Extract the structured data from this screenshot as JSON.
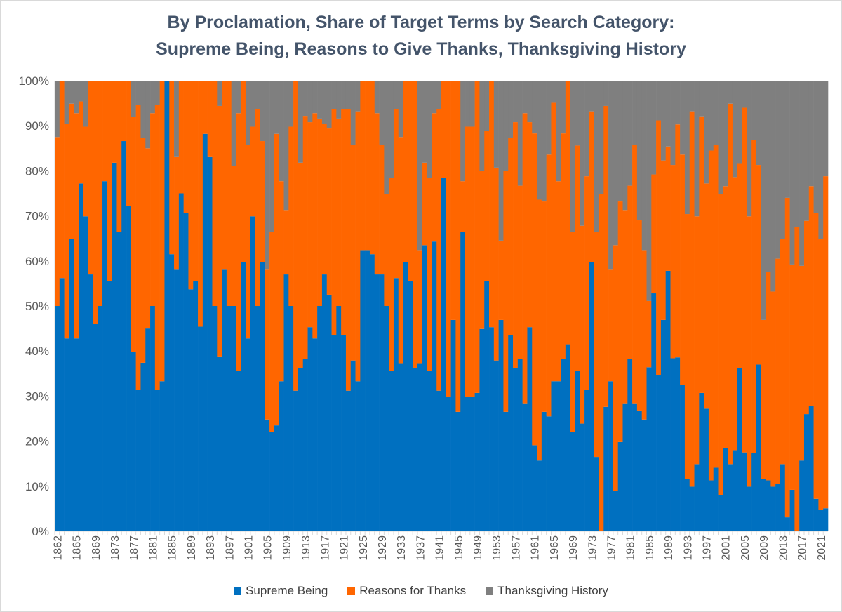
{
  "chart_data": {
    "type": "bar",
    "stacked": "100%",
    "title": [
      "By Proclamation, Share of Target Terms by Search Category:",
      "Supreme Being, Reasons to Give Thanks, Thanksgiving History"
    ],
    "xlabel": "",
    "ylabel": "",
    "ylim": [
      0,
      100
    ],
    "y_tick_labels": [
      "0%",
      "10%",
      "20%",
      "30%",
      "40%",
      "50%",
      "60%",
      "70%",
      "80%",
      "90%",
      "100%"
    ],
    "x_label_interval": 4,
    "grid": false,
    "legend_position": "bottom",
    "categories": [
      "1862",
      "1863",
      "1863",
      "1864",
      "1865",
      "1866",
      "1867",
      "1868",
      "1869",
      "1870",
      "1871",
      "1872",
      "1873",
      "1874",
      "1875",
      "1876",
      "1877",
      "1878",
      "1879",
      "1880",
      "1881",
      "1882",
      "1883",
      "1884",
      "1885",
      "1886",
      "1887",
      "1888",
      "1889",
      "1890",
      "1891",
      "1892",
      "1893",
      "1894",
      "1895",
      "1896",
      "1897",
      "1898",
      "1899",
      "1900",
      "1901",
      "1902",
      "1903",
      "1904",
      "1905",
      "1906",
      "1907",
      "1908",
      "1909",
      "1910",
      "1911",
      "1912",
      "1913",
      "1914",
      "1915",
      "1916",
      "1917",
      "1918",
      "1919",
      "1920",
      "1921",
      "1922",
      "1923",
      "1924",
      "1925",
      "1926",
      "1927",
      "1928",
      "1929",
      "1930",
      "1931",
      "1932",
      "1933",
      "1934",
      "1935",
      "1936",
      "1937",
      "1938",
      "1939",
      "1940",
      "1941",
      "1942",
      "1943",
      "1944",
      "1945",
      "1946",
      "1947",
      "1948",
      "1949",
      "1950",
      "1951",
      "1952",
      "1953",
      "1954",
      "1955",
      "1956",
      "1957",
      "1958",
      "1959",
      "1960",
      "1961",
      "1962",
      "1963",
      "1964",
      "1965",
      "1966",
      "1967",
      "1968",
      "1969",
      "1970",
      "1971",
      "1972",
      "1973",
      "1974",
      "1975",
      "1976",
      "1977",
      "1978",
      "1979",
      "1980",
      "1981",
      "1982",
      "1983",
      "1984",
      "1985",
      "1986",
      "1987",
      "1988",
      "1989",
      "1990",
      "1991",
      "1992",
      "1993",
      "1994",
      "1995",
      "1996",
      "1997",
      "1998",
      "1999",
      "2000",
      "2001",
      "2002",
      "2003",
      "2004",
      "2005",
      "2006",
      "2007",
      "2008",
      "2009",
      "2010",
      "2011",
      "2012",
      "2013",
      "2014",
      "2015",
      "2016",
      "2017",
      "2018",
      "2019",
      "2020",
      "2021",
      "2022"
    ],
    "series": [
      {
        "name": "Supreme Being",
        "color": "#0070c0",
        "values": [
          50,
          56.2,
          42.8,
          64.9,
          42.8,
          77.2,
          69.9,
          57,
          46,
          50,
          77.7,
          55.5,
          81.8,
          66.5,
          86.6,
          72.2,
          39.8,
          31.4,
          37.4,
          45,
          50,
          31.4,
          33.3,
          100,
          61.5,
          58.2,
          75,
          70.7,
          53.7,
          55.5,
          45.4,
          88.2,
          83.2,
          50,
          38.8,
          58.2,
          50,
          50,
          35.6,
          59.8,
          42.8,
          69.9,
          50,
          59.8,
          24.8,
          22,
          23.5,
          33.3,
          57,
          50,
          31.2,
          36.2,
          38.3,
          45.3,
          42.8,
          50,
          57,
          52.5,
          43.6,
          50,
          43.6,
          31.2,
          37.9,
          33.3,
          62.4,
          62.4,
          61.5,
          57,
          57,
          50,
          35.6,
          56.2,
          37.3,
          59.8,
          55.5,
          36.2,
          37.3,
          63.5,
          35.6,
          64.3,
          31.2,
          78.5,
          29.9,
          46.9,
          26.5,
          66.5,
          29.9,
          29.9,
          30.7,
          44.9,
          55.5,
          45.3,
          37.9,
          46.9,
          26.5,
          43.6,
          36.2,
          38.3,
          28.4,
          45.3,
          19.1,
          15.7,
          26.5,
          25.5,
          33.3,
          33.3,
          38.3,
          41.5,
          22.1,
          35.6,
          23.9,
          31.4,
          59.8,
          16.5,
          0,
          27.6,
          33.3,
          9,
          19.8,
          28.4,
          38.3,
          28.4,
          26.8,
          24.8,
          36.4,
          52.8,
          34.7,
          46.9,
          57.8,
          38.4,
          38.6,
          32.5,
          11.6,
          9.9,
          14.9,
          30.7,
          27.2,
          11.3,
          14.1,
          8.1,
          18.4,
          14.9,
          18,
          36.2,
          17.5,
          9.9,
          17.3,
          37,
          11.6,
          11.3,
          9.9,
          10.5,
          14.9,
          3.1,
          9.2,
          0,
          15.7,
          26,
          27.8,
          7.2,
          4.8,
          5.1
        ]
      },
      {
        "name": "Reasons for Thanks",
        "color": "#ff6600",
        "values": [
          37.5,
          43.8,
          47.6,
          30,
          50,
          18.2,
          19.9,
          43,
          54,
          50,
          22.3,
          44.5,
          18.2,
          33.5,
          13.4,
          27.8,
          52.1,
          63.2,
          49.9,
          40,
          42.8,
          63.2,
          66.7,
          0,
          38.5,
          25,
          25,
          29.3,
          46.3,
          44.5,
          54.6,
          11.8,
          16.8,
          50,
          55.6,
          41.8,
          50,
          31.1,
          57.2,
          40.2,
          42.9,
          19.9,
          43.7,
          26.8,
          33.4,
          44.5,
          64.7,
          44.4,
          14.3,
          39.8,
          68.8,
          45.6,
          53.9,
          45.5,
          50,
          41.6,
          33.4,
          36.9,
          50.1,
          41.6,
          50.1,
          62.5,
          47.8,
          59.9,
          37.6,
          37.6,
          38.5,
          35.8,
          28.7,
          24.9,
          42.9,
          37.5,
          50.2,
          40.2,
          44.5,
          63.8,
          25.1,
          18.3,
          42.9,
          28.5,
          62.5,
          21.5,
          70.1,
          53.1,
          73.5,
          11.2,
          59.9,
          59.9,
          69.3,
          35.1,
          33.3,
          54.7,
          42.8,
          17.6,
          53.5,
          43.7,
          54.6,
          38.4,
          64.4,
          45.5,
          69.2,
          57.9,
          46.7,
          58.1,
          61.8,
          44.4,
          50,
          58.5,
          44.4,
          50,
          43.9,
          47.4,
          33.4,
          50,
          74.9,
          66.8,
          24.9,
          54.5,
          53.4,
          42.9,
          38.4,
          57.3,
          42.2,
          37.6,
          14.7,
          26.4,
          56.5,
          35.4,
          27.6,
          42.9,
          51.7,
          51.1,
          58.8,
          83.3,
          55,
          61.4,
          50,
          73.2,
          71.6,
          66.8,
          58.2,
          80,
          60.6,
          45.5,
          76.5,
          60,
          69.5,
          44.3,
          35.3,
          46.3,
          43.3,
          50,
          50,
          70.9,
          50,
          67.5,
          43.2,
          42.9,
          48.8,
          63.4,
          60.1,
          73.7
        ]
      },
      {
        "name": "Thanksgiving History",
        "color": "#7f7f7f",
        "values": [
          12.5,
          0,
          9.6,
          5.1,
          7.2,
          4.6,
          10.2,
          0,
          0,
          0,
          0,
          0,
          0,
          0,
          0,
          0,
          8.1,
          5.4,
          12.7,
          15,
          7.2,
          5.4,
          0,
          0,
          0,
          16.8,
          0,
          0,
          0,
          0,
          0,
          0,
          0,
          0,
          5.6,
          0,
          0,
          18.9,
          7.2,
          0,
          14.3,
          10.2,
          6.3,
          13.4,
          41.8,
          33.5,
          11.8,
          22.3,
          28.7,
          10.2,
          0,
          18.2,
          7.8,
          9.2,
          7.2,
          8.4,
          9.6,
          10.6,
          6.3,
          8.4,
          6.3,
          6.3,
          14.3,
          6.8,
          0,
          0,
          0,
          7.2,
          14.3,
          25.1,
          21.5,
          6.3,
          12.5,
          0,
          0,
          0,
          37.6,
          18.2,
          21.5,
          7.2,
          6.3,
          0,
          0,
          0,
          0,
          22.3,
          10.2,
          10.2,
          0,
          20,
          11.2,
          0,
          19.3,
          35.5,
          20,
          12.7,
          9.2,
          23.3,
          7.2,
          9.2,
          11.7,
          26.4,
          26.8,
          16.4,
          4.9,
          22.3,
          11.7,
          0,
          33.5,
          14.4,
          32.2,
          21.2,
          6.8,
          33.5,
          25.1,
          5.6,
          41.8,
          36.5,
          26.8,
          28.7,
          23.3,
          14.3,
          31,
          37.6,
          48.9,
          20.8,
          8.8,
          17.7,
          14.6,
          18.7,
          9.7,
          16.4,
          29.6,
          6.8,
          30.1,
          7.9,
          22.8,
          15.5,
          14.3,
          25.1,
          23.4,
          5.1,
          21.4,
          18.3,
          6,
          30.1,
          13.2,
          18.7,
          53.1,
          42.4,
          46.8,
          39.5,
          35.1,
          26,
          40.8,
          32.5,
          41.1,
          31.1,
          23.4,
          29.4,
          35.1,
          21.2
        ]
      }
    ]
  }
}
